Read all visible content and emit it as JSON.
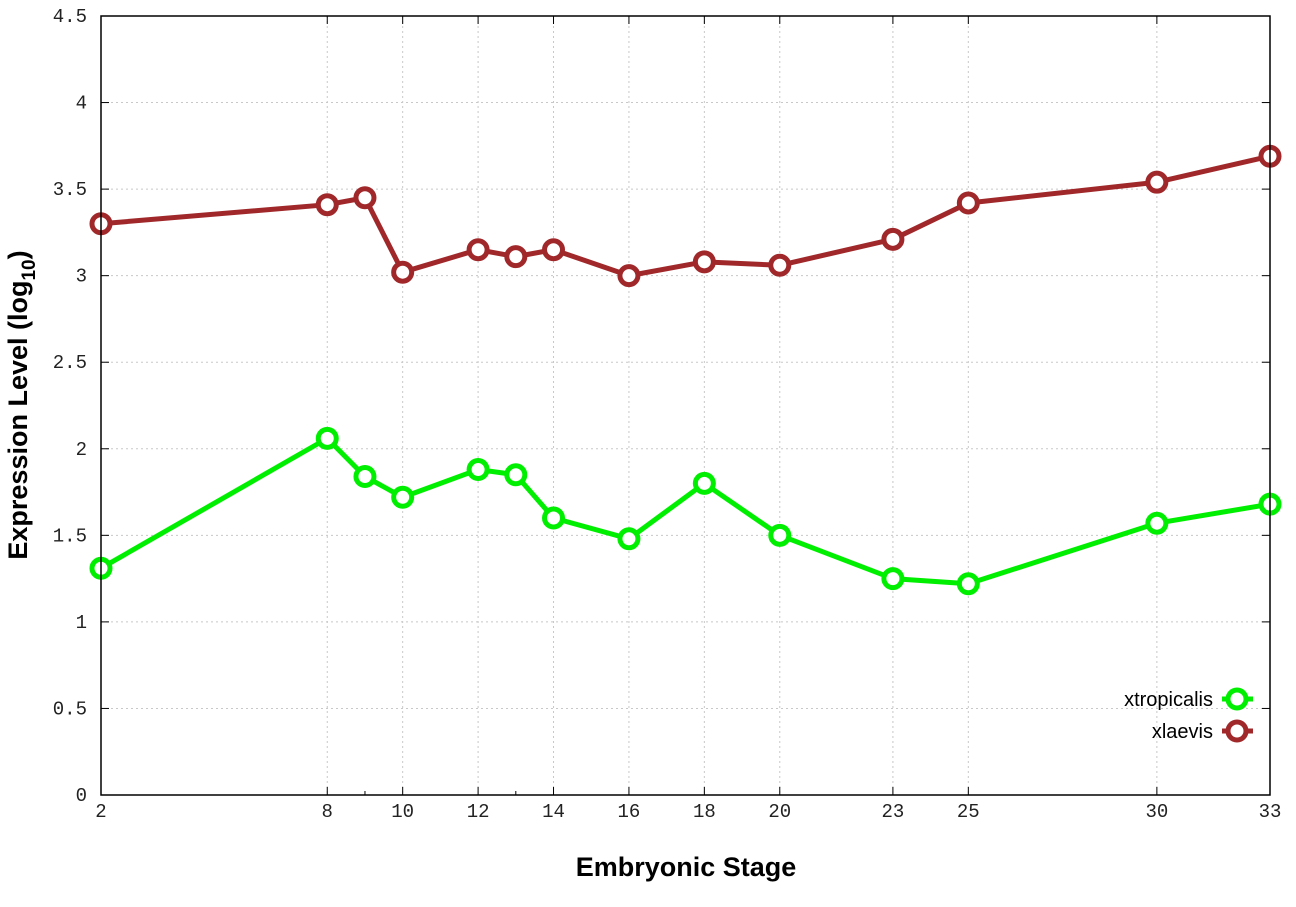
{
  "chart_data": {
    "type": "line",
    "title": "",
    "xlabel": "Embryonic Stage",
    "ylabel": "Expression Level (log",
    "ylabel_subscript": "10",
    "ylabel_close": ")",
    "xlim": [
      2,
      33
    ],
    "ylim": [
      0,
      4.5
    ],
    "x_ticks": [
      2,
      8,
      10,
      12,
      14,
      16,
      18,
      20,
      23,
      25,
      30,
      33
    ],
    "x_minor_ticks": [
      9,
      13
    ],
    "y_ticks": [
      "0",
      "0.5",
      "1",
      "1.5",
      "2",
      "2.5",
      "3",
      "3.5",
      "4",
      "4.5"
    ],
    "grid": true,
    "legend_position": "bottom-right",
    "x": [
      2,
      8,
      9,
      10,
      12,
      13,
      14,
      16,
      18,
      20,
      23,
      25,
      30,
      33
    ],
    "series": [
      {
        "name": "xtropicalis",
        "color": "#00ee00",
        "values": [
          1.31,
          2.06,
          1.84,
          1.72,
          1.88,
          1.85,
          1.6,
          1.48,
          1.8,
          1.5,
          1.25,
          1.22,
          1.57,
          1.68
        ]
      },
      {
        "name": "xlaevis",
        "color": "#a0282a",
        "values": [
          3.3,
          3.41,
          3.45,
          3.02,
          3.15,
          3.11,
          3.15,
          3.0,
          3.08,
          3.06,
          3.21,
          3.42,
          3.54,
          3.69
        ]
      }
    ]
  }
}
